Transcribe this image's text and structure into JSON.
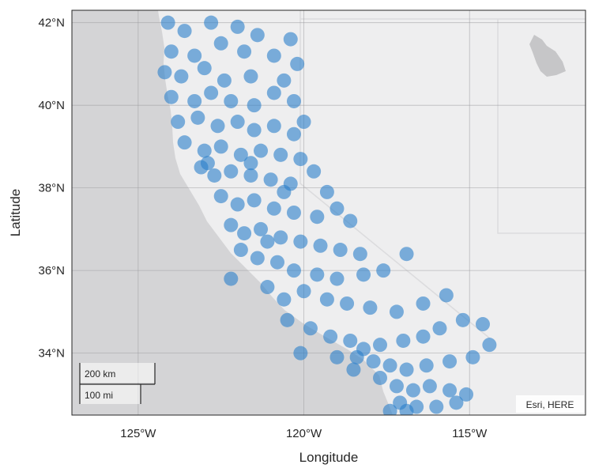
{
  "chart_data": {
    "type": "scatter",
    "xlabel": "Longitude",
    "ylabel": "Latitude",
    "xlim": [
      -127,
      -111.5
    ],
    "ylim": [
      32.5,
      42.3
    ],
    "x_ticks": [
      {
        "value": -125,
        "label": "125°W"
      },
      {
        "value": -120,
        "label": "120°W"
      },
      {
        "value": -115,
        "label": "115°W"
      }
    ],
    "y_ticks": [
      {
        "value": 34,
        "label": "34°N"
      },
      {
        "value": 36,
        "label": "36°N"
      },
      {
        "value": 38,
        "label": "38°N"
      },
      {
        "value": 40,
        "label": "40°N"
      },
      {
        "value": 42,
        "label": "42°N"
      }
    ],
    "grid": true,
    "marker_color": "#2a7fc9",
    "marker_opacity": 0.6,
    "series": [
      {
        "points": [
          [
            -124.1,
            42.0
          ],
          [
            -123.6,
            41.8
          ],
          [
            -122.8,
            42.0
          ],
          [
            -122.0,
            41.9
          ],
          [
            -121.4,
            41.7
          ],
          [
            -120.4,
            41.6
          ],
          [
            -124.0,
            41.3
          ],
          [
            -123.3,
            41.2
          ],
          [
            -122.5,
            41.5
          ],
          [
            -121.8,
            41.3
          ],
          [
            -120.9,
            41.2
          ],
          [
            -120.2,
            41.0
          ],
          [
            -124.2,
            40.8
          ],
          [
            -123.7,
            40.7
          ],
          [
            -123.0,
            40.9
          ],
          [
            -122.4,
            40.6
          ],
          [
            -121.6,
            40.7
          ],
          [
            -120.6,
            40.6
          ],
          [
            -124.0,
            40.2
          ],
          [
            -123.3,
            40.1
          ],
          [
            -122.8,
            40.3
          ],
          [
            -122.2,
            40.1
          ],
          [
            -121.5,
            40.0
          ],
          [
            -120.9,
            40.3
          ],
          [
            -120.3,
            40.1
          ],
          [
            -123.8,
            39.6
          ],
          [
            -123.2,
            39.7
          ],
          [
            -122.6,
            39.5
          ],
          [
            -122.0,
            39.6
          ],
          [
            -121.5,
            39.4
          ],
          [
            -120.9,
            39.5
          ],
          [
            -120.3,
            39.3
          ],
          [
            -120.0,
            39.6
          ],
          [
            -123.6,
            39.1
          ],
          [
            -123.0,
            38.9
          ],
          [
            -122.5,
            39.0
          ],
          [
            -121.9,
            38.8
          ],
          [
            -121.3,
            38.9
          ],
          [
            -120.7,
            38.8
          ],
          [
            -120.1,
            38.7
          ],
          [
            -123.1,
            38.5
          ],
          [
            -122.7,
            38.3
          ],
          [
            -122.2,
            38.4
          ],
          [
            -121.6,
            38.3
          ],
          [
            -121.0,
            38.2
          ],
          [
            -120.4,
            38.1
          ],
          [
            -119.7,
            38.4
          ],
          [
            -119.3,
            37.9
          ],
          [
            -122.5,
            37.8
          ],
          [
            -122.0,
            37.6
          ],
          [
            -121.5,
            37.7
          ],
          [
            -120.9,
            37.5
          ],
          [
            -120.3,
            37.4
          ],
          [
            -119.6,
            37.3
          ],
          [
            -119.0,
            37.5
          ],
          [
            -118.6,
            37.2
          ],
          [
            -122.2,
            37.1
          ],
          [
            -121.8,
            36.9
          ],
          [
            -121.3,
            37.0
          ],
          [
            -120.7,
            36.8
          ],
          [
            -120.1,
            36.7
          ],
          [
            -119.5,
            36.6
          ],
          [
            -118.9,
            36.5
          ],
          [
            -118.3,
            36.4
          ],
          [
            -121.9,
            36.5
          ],
          [
            -121.4,
            36.3
          ],
          [
            -120.8,
            36.2
          ],
          [
            -120.3,
            36.0
          ],
          [
            -119.6,
            35.9
          ],
          [
            -119.0,
            35.8
          ],
          [
            -118.2,
            35.9
          ],
          [
            -117.6,
            36.0
          ],
          [
            -116.9,
            36.4
          ],
          [
            -122.2,
            35.8
          ],
          [
            -121.1,
            35.6
          ],
          [
            -120.6,
            35.3
          ],
          [
            -120.0,
            35.5
          ],
          [
            -119.3,
            35.3
          ],
          [
            -118.7,
            35.2
          ],
          [
            -118.0,
            35.1
          ],
          [
            -117.2,
            35.0
          ],
          [
            -116.4,
            35.2
          ],
          [
            -115.7,
            35.4
          ],
          [
            -120.5,
            34.8
          ],
          [
            -119.8,
            34.6
          ],
          [
            -119.2,
            34.4
          ],
          [
            -118.6,
            34.3
          ],
          [
            -118.2,
            34.1
          ],
          [
            -117.7,
            34.2
          ],
          [
            -117.0,
            34.3
          ],
          [
            -116.4,
            34.4
          ],
          [
            -115.9,
            34.6
          ],
          [
            -115.2,
            34.8
          ],
          [
            -114.6,
            34.7
          ],
          [
            -118.4,
            33.9
          ],
          [
            -117.9,
            33.8
          ],
          [
            -117.4,
            33.7
          ],
          [
            -116.9,
            33.6
          ],
          [
            -116.3,
            33.7
          ],
          [
            -115.6,
            33.8
          ],
          [
            -114.9,
            33.9
          ],
          [
            -114.4,
            34.2
          ],
          [
            -117.7,
            33.4
          ],
          [
            -117.2,
            33.2
          ],
          [
            -116.7,
            33.1
          ],
          [
            -116.2,
            33.2
          ],
          [
            -115.6,
            33.1
          ],
          [
            -115.1,
            33.0
          ],
          [
            -117.1,
            32.8
          ],
          [
            -116.6,
            32.7
          ],
          [
            -116.0,
            32.7
          ],
          [
            -115.4,
            32.8
          ],
          [
            -117.4,
            32.6
          ],
          [
            -120.1,
            34.0
          ],
          [
            -119.0,
            33.9
          ],
          [
            -121.6,
            38.6
          ],
          [
            -122.9,
            38.6
          ],
          [
            -120.6,
            37.9
          ],
          [
            -121.1,
            36.7
          ],
          [
            -118.5,
            33.6
          ],
          [
            -116.9,
            32.6
          ]
        ]
      }
    ]
  },
  "scale_bar": {
    "km_label": "200 km",
    "mi_label": "100 mi"
  },
  "attribution": "Esri, HERE"
}
